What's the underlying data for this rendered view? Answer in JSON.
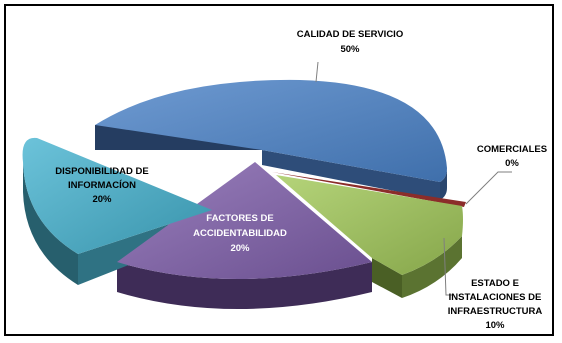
{
  "chart_data": {
    "type": "pie",
    "style": "3d-exploded",
    "slices": [
      {
        "label": "CALIDAD DE SERVICIO",
        "value_label": "50%",
        "value": 50,
        "color": "#4f81bd"
      },
      {
        "label": "COMERCIALES",
        "value_label": "0%",
        "value": 0,
        "color": "#c0504d"
      },
      {
        "label": "ESTADO E INSTALACIONES DE INFRAESTRUCTURA",
        "label_lines": [
          "ESTADO E",
          "INSTALACIONES DE",
          "INFRAESTRUCTURA"
        ],
        "value_label": "10%",
        "value": 10,
        "color": "#9bbb59"
      },
      {
        "label": "FACTORES DE ACCIDENTABILIDAD",
        "label_lines": [
          "FACTORES DE",
          "ACCIDENTABILIDAD"
        ],
        "value_label": "20%",
        "value": 20,
        "color": "#8064a2"
      },
      {
        "label": "DISPONIBILIDAD DE INFORMACÍON",
        "label_lines": [
          "DISPONIBILIDAD DE",
          "INFORMACÍON"
        ],
        "value_label": "20%",
        "value": 20,
        "color": "#4bacc6"
      }
    ]
  }
}
